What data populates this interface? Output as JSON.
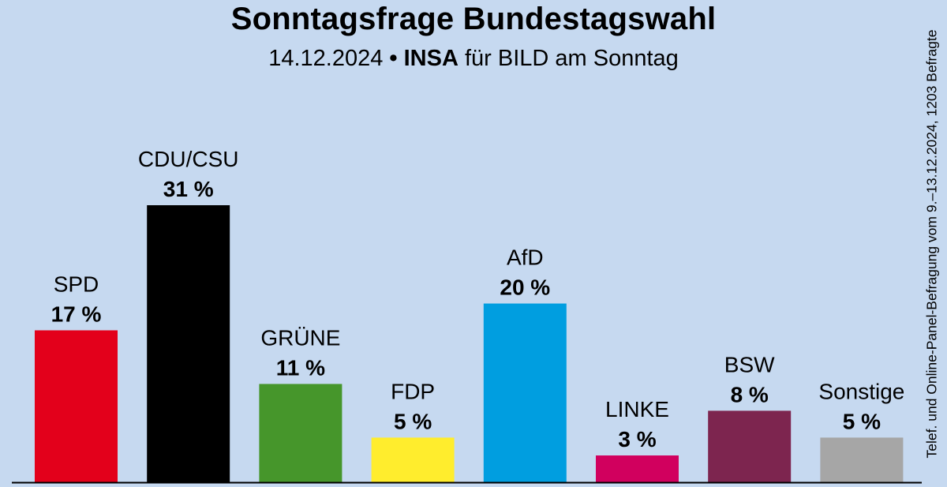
{
  "header": {
    "title": "Sonntagsfrage Bundestagswahl",
    "date": "14.12.2024",
    "separator": "•",
    "institute": "INSA",
    "client": "für BILD am Sonntag"
  },
  "sidenote": "Telef. und Online-Panel-Befragung vom 9.–13.12.2024, 1203 Befragte",
  "chart_data": {
    "type": "bar",
    "title": "Sonntagsfrage Bundestagswahl",
    "subtitle": "14.12.2024 • INSA für BILD am Sonntag",
    "categories": [
      "SPD",
      "CDU/CSU",
      "GRÜNE",
      "FDP",
      "AfD",
      "LINKE",
      "BSW",
      "Sonstige"
    ],
    "values": [
      17,
      31,
      11,
      5,
      20,
      3,
      8,
      5
    ],
    "value_labels": [
      "17 %",
      "31 %",
      "11 %",
      "5 %",
      "20 %",
      "3 %",
      "8 %",
      "5 %"
    ],
    "colors": [
      "#e3001b",
      "#000000",
      "#46962b",
      "#ffed2d",
      "#009ee0",
      "#d1005e",
      "#7d254f",
      "#a6a6a6"
    ],
    "unit": "%",
    "ylim": [
      0,
      31
    ],
    "grid": false,
    "legend": "none"
  }
}
